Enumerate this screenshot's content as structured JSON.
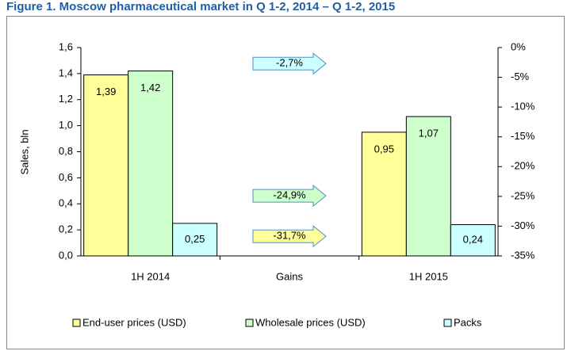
{
  "chart_data": {
    "type": "bar",
    "title": "Figure 1. Moscow pharmaceutical market in Q 1-2, 2014 – Q 1-2, 2015",
    "ylabel": "Sales, bln",
    "categories": [
      "1H 2014",
      "Gains",
      "1H 2015"
    ],
    "series": [
      {
        "name": "End-user prices (USD)",
        "color": "#ffff99",
        "values": [
          1.39,
          null,
          0.95
        ],
        "value_labels": [
          "1,39",
          null,
          "0,95"
        ]
      },
      {
        "name": "Wholesale prices (USD)",
        "color": "#ccffcc",
        "values": [
          1.42,
          null,
          1.07
        ],
        "value_labels": [
          "1,42",
          null,
          "1,07"
        ]
      },
      {
        "name": "Packs",
        "color": "#ccffff",
        "values": [
          0.25,
          null,
          0.24
        ],
        "value_labels": [
          "0,25",
          null,
          "0,24"
        ]
      }
    ],
    "ylim": [
      0,
      1.6
    ],
    "yticks": [
      {
        "value": 0,
        "label": "0,0"
      },
      {
        "value": 0.2,
        "label": "0,2"
      },
      {
        "value": 0.4,
        "label": "0,4"
      },
      {
        "value": 0.6,
        "label": "0,6"
      },
      {
        "value": 0.8,
        "label": "0,8"
      },
      {
        "value": 1.0,
        "label": "1,0"
      },
      {
        "value": 1.2,
        "label": "1,2"
      },
      {
        "value": 1.4,
        "label": "1,4"
      },
      {
        "value": 1.6,
        "label": "1,6"
      }
    ],
    "y2lim": [
      -35,
      0
    ],
    "y2ticks": [
      {
        "value": 0,
        "label": "0%"
      },
      {
        "value": -5,
        "label": "-5%"
      },
      {
        "value": -10,
        "label": "-10%"
      },
      {
        "value": -15,
        "label": "-15%"
      },
      {
        "value": -20,
        "label": "-20%"
      },
      {
        "value": -25,
        "label": "-25%"
      },
      {
        "value": -30,
        "label": "-30%"
      },
      {
        "value": -35,
        "label": "-35%"
      }
    ],
    "annotations": [
      {
        "value": -2.7,
        "label": "-2,7%",
        "color": "#ccffff",
        "axis": "y2"
      },
      {
        "value": -24.9,
        "label": "-24,9%",
        "color": "#ccffcc",
        "axis": "y2"
      },
      {
        "value": -31.7,
        "label": "-31,7%",
        "color": "#ffff99",
        "axis": "y2"
      }
    ],
    "grid": false,
    "legend": "bottom"
  }
}
